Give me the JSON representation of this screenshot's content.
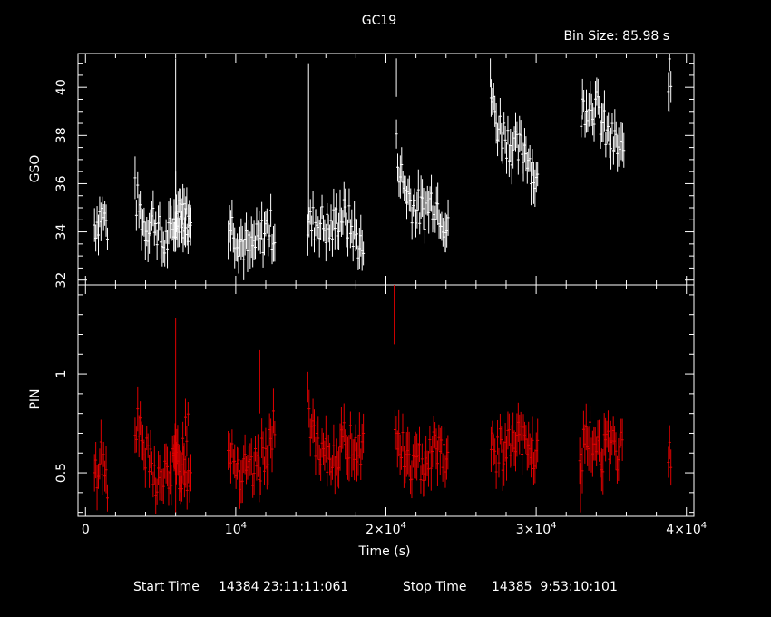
{
  "title": "GC19",
  "bin_size": "Bin Size: 85.98 s",
  "footer": {
    "start_label": "Start Time",
    "start_value": "14384 23:11:11:061",
    "stop_label": "Stop Time",
    "stop_value": "14385  9:53:10:101"
  },
  "colors": {
    "background": "#000000",
    "gso": "#ffffff",
    "pin": "#e00000"
  },
  "chart_data": [
    {
      "type": "scatter",
      "name": "GSO panel",
      "xlabel": "Time (s)",
      "ylabel": "GSO",
      "xlim": [
        -500,
        40500
      ],
      "ylim": [
        31.8,
        41.4
      ],
      "yticks": [
        32,
        34,
        36,
        38,
        40
      ],
      "ytick_labels": [
        "32",
        "34",
        "36",
        "38",
        "40"
      ],
      "segments": [
        {
          "x0": 600,
          "x1": 1500,
          "p": [
            [
              0,
              34.3
            ],
            [
              0.5,
              34.8
            ],
            [
              1,
              34.2
            ]
          ]
        },
        {
          "x0": 3300,
          "x1": 7000,
          "p": [
            [
              0,
              35.5
            ],
            [
              0.18,
              34.2
            ],
            [
              0.35,
              34.6
            ],
            [
              0.5,
              33.4
            ],
            [
              0.7,
              34.1
            ],
            [
              0.85,
              35.3
            ],
            [
              1,
              34.0
            ]
          ]
        },
        {
          "x0": 5900,
          "x1": 7100,
          "p": [
            [
              0,
              35.0
            ],
            [
              0.5,
              34.5
            ],
            [
              1,
              34.4
            ]
          ]
        },
        {
          "x0": 9500,
          "x1": 12600,
          "p": [
            [
              0,
              34.5
            ],
            [
              0.25,
              33.7
            ],
            [
              0.45,
              33.2
            ],
            [
              0.65,
              33.6
            ],
            [
              0.85,
              34.2
            ],
            [
              1,
              34.0
            ]
          ]
        },
        {
          "x0": 14800,
          "x1": 18500,
          "p": [
            [
              0,
              34.2
            ],
            [
              0.2,
              34.5
            ],
            [
              0.4,
              34.0
            ],
            [
              0.6,
              34.8
            ],
            [
              0.8,
              34.1
            ],
            [
              1,
              33.2
            ]
          ]
        },
        {
          "x0": 20700,
          "x1": 24200,
          "p": [
            [
              0,
              37.4
            ],
            [
              0.12,
              36.0
            ],
            [
              0.3,
              35.2
            ],
            [
              0.5,
              34.8
            ],
            [
              0.7,
              35.4
            ],
            [
              0.85,
              34.9
            ],
            [
              1,
              33.8
            ]
          ]
        },
        {
          "x0": 27000,
          "x1": 30100,
          "p": [
            [
              0,
              39.8
            ],
            [
              0.1,
              38.6
            ],
            [
              0.3,
              38.0
            ],
            [
              0.55,
              37.3
            ],
            [
              0.75,
              37.5
            ],
            [
              0.9,
              36.6
            ],
            [
              1,
              35.8
            ]
          ]
        },
        {
          "x0": 33000,
          "x1": 35900,
          "p": [
            [
              0,
              39.0
            ],
            [
              0.2,
              39.6
            ],
            [
              0.4,
              38.9
            ],
            [
              0.6,
              37.9
            ],
            [
              0.8,
              37.6
            ],
            [
              1,
              37.0
            ]
          ]
        },
        {
          "x0": 38800,
          "x1": 39000,
          "p": [
            [
              0,
              40.6
            ],
            [
              1,
              40.0
            ]
          ]
        }
      ],
      "spikes": [
        [
          6000,
          33.2,
          41.2
        ],
        [
          6000,
          35.5,
          36.5
        ],
        [
          14850,
          34.5,
          41.0
        ],
        [
          20700,
          39.6,
          41.2
        ],
        [
          26950,
          40.0,
          41.2
        ],
        [
          38850,
          39.0,
          41.2
        ]
      ],
      "jitter": 0.85,
      "err": 0.75
    },
    {
      "type": "scatter",
      "name": "PIN panel",
      "xlabel": "Time (s)",
      "ylabel": "PIN",
      "xlim": [
        -500,
        40500
      ],
      "ylim": [
        0.28,
        1.45
      ],
      "yticks": [
        0.5,
        1
      ],
      "ytick_labels": [
        "0.5",
        "1"
      ],
      "xticks": [
        0,
        10000,
        20000,
        30000,
        40000
      ],
      "xtick_labels": [
        {
          "base": "0",
          "exp": ""
        },
        {
          "base": "10",
          "exp": "4"
        },
        {
          "base": "2×10",
          "exp": "4"
        },
        {
          "base": "3×10",
          "exp": "4"
        },
        {
          "base": "4×10",
          "exp": "4"
        }
      ],
      "segments": [
        {
          "x0": 600,
          "x1": 1500,
          "p": [
            [
              0,
              0.45
            ],
            [
              0.5,
              0.6
            ],
            [
              1,
              0.45
            ]
          ]
        },
        {
          "x0": 3300,
          "x1": 6900,
          "p": [
            [
              0,
              0.78
            ],
            [
              0.2,
              0.58
            ],
            [
              0.4,
              0.46
            ],
            [
              0.6,
              0.48
            ],
            [
              0.8,
              0.58
            ],
            [
              1,
              0.72
            ]
          ]
        },
        {
          "x0": 5900,
          "x1": 7100,
          "p": [
            [
              0,
              0.55
            ],
            [
              0.5,
              0.48
            ],
            [
              1,
              0.52
            ]
          ]
        },
        {
          "x0": 9500,
          "x1": 12600,
          "p": [
            [
              0,
              0.68
            ],
            [
              0.25,
              0.5
            ],
            [
              0.5,
              0.48
            ],
            [
              0.75,
              0.58
            ],
            [
              1,
              0.72
            ]
          ]
        },
        {
          "x0": 14800,
          "x1": 18500,
          "p": [
            [
              0,
              0.85
            ],
            [
              0.2,
              0.55
            ],
            [
              0.45,
              0.58
            ],
            [
              0.7,
              0.66
            ],
            [
              1,
              0.63
            ]
          ]
        },
        {
          "x0": 20600,
          "x1": 24200,
          "p": [
            [
              0,
              0.72
            ],
            [
              0.2,
              0.56
            ],
            [
              0.4,
              0.52
            ],
            [
              0.6,
              0.6
            ],
            [
              0.8,
              0.65
            ],
            [
              1,
              0.57
            ]
          ]
        },
        {
          "x0": 27000,
          "x1": 30100,
          "p": [
            [
              0,
              0.6
            ],
            [
              0.3,
              0.62
            ],
            [
              0.6,
              0.66
            ],
            [
              1,
              0.58
            ]
          ]
        },
        {
          "x0": 32900,
          "x1": 35800,
          "p": [
            [
              0,
              0.6
            ],
            [
              0.3,
              0.66
            ],
            [
              0.6,
              0.6
            ],
            [
              1,
              0.62
            ]
          ]
        },
        {
          "x0": 38800,
          "x1": 39000,
          "p": [
            [
              0,
              0.6
            ],
            [
              1,
              0.55
            ]
          ]
        }
      ],
      "spikes": [
        [
          20550,
          1.15,
          1.45
        ],
        [
          6000,
          0.3,
          1.28
        ],
        [
          32950,
          0.3,
          0.55
        ],
        [
          11600,
          0.8,
          1.12
        ]
      ],
      "jitter": 0.11,
      "err": 0.1
    }
  ]
}
